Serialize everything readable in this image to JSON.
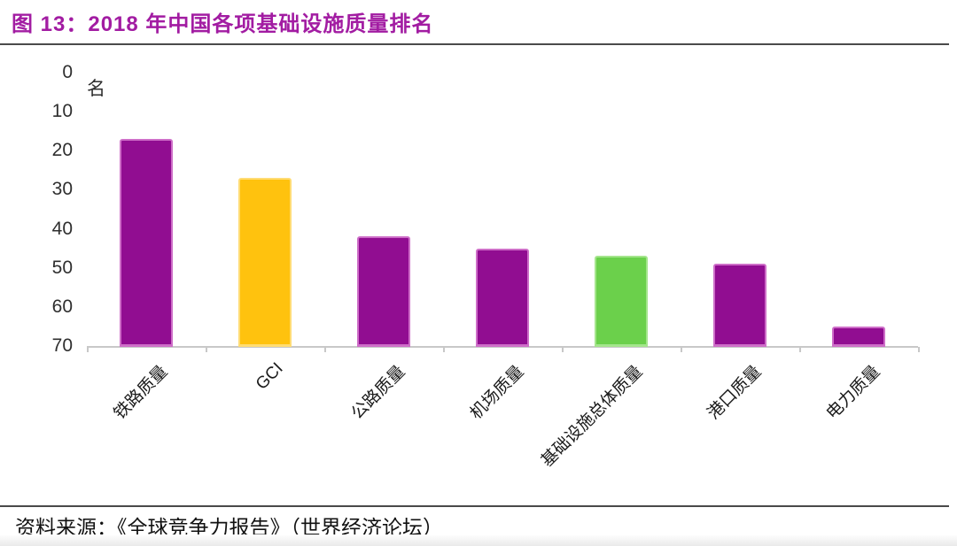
{
  "header": {
    "title": "图 13：2018 年中国各项基础设施质量排名"
  },
  "footer": {
    "source": "资料来源：《全球竞争力报告》（世界经济论坛）"
  },
  "chart_data": {
    "type": "bar",
    "title": "2018 年中国各项基础设施质量排名",
    "unit_label": "名",
    "categories": [
      "铁路质量",
      "GCI",
      "公路质量",
      "机场质量",
      "基础设施总体质量",
      "港口质量",
      "电力质量"
    ],
    "values": [
      17,
      27,
      42,
      45,
      47,
      49,
      65
    ],
    "bar_colors": [
      "#910D91",
      "#FFC20E",
      "#910D91",
      "#910D91",
      "#6BD04B",
      "#910D91",
      "#910D91"
    ],
    "bar_border_colors": [
      "#CE6EC8",
      "#FFDC73",
      "#CE6EC8",
      "#CE6EC8",
      "#A4E58C",
      "#CE6EC8",
      "#CE6EC8"
    ],
    "xlabel": "",
    "ylabel": "名",
    "y_axis": {
      "min": 0,
      "max": 70,
      "step": 10,
      "inverted": true,
      "ticks": [
        0,
        10,
        20,
        30,
        40,
        50,
        60,
        70
      ]
    },
    "legend": "none",
    "grid": "off",
    "colors": {
      "purple": "#910D91",
      "yellow": "#FFC20E",
      "green": "#6BD04B",
      "title_accent": "#A21CA2",
      "axis": "#c8c8c8",
      "rule": "#4a4a4a"
    }
  }
}
